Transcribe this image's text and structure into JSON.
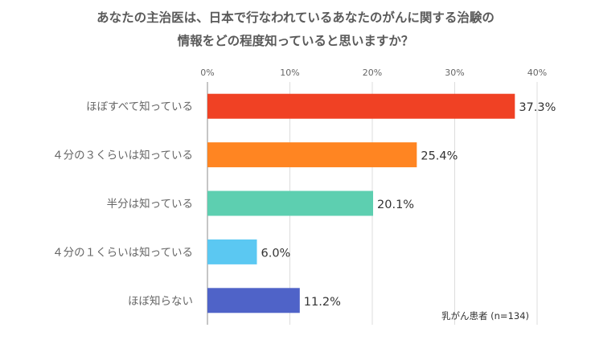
{
  "title_lines": [
    "あなたの主治医は、日本で行なわれているあなたのがんに関する治験の",
    "情報をどの程度知っていると思いますか？"
  ],
  "note": "乳がん患者 (n=134)",
  "chart_data": {
    "type": "bar",
    "orientation": "horizontal",
    "title": "あなたの主治医は、日本で行なわれているあなたのがんに関する治験の情報をどの程度知っていると思いますか？",
    "categories": [
      "ほぼすべて知っている",
      "４分の３くらいは知っている",
      "半分は知っている",
      "４分の１くらいは知っている",
      "ほぼ知らない"
    ],
    "values": [
      37.3,
      25.4,
      20.1,
      6.0,
      11.2
    ],
    "value_labels": [
      "37.3%",
      "25.4%",
      "20.1%",
      "6.0%",
      "11.2%"
    ],
    "colors": [
      "#F04124",
      "#FF8522",
      "#5DCFB0",
      "#5BC8F2",
      "#4F63C8"
    ],
    "xlim": [
      0,
      40
    ],
    "xticks": [
      "0%",
      "10%",
      "20%",
      "30%",
      "40%"
    ],
    "xtick_values": [
      0,
      10,
      20,
      30,
      40
    ],
    "xaxis_position": "top",
    "grid": true,
    "legend": "none"
  }
}
